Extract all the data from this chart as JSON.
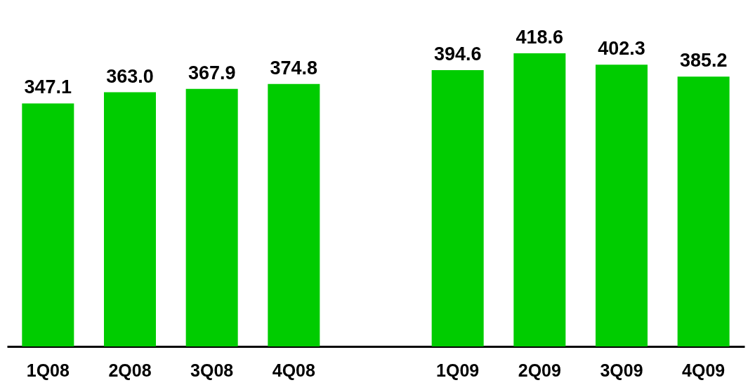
{
  "chart_data": {
    "type": "bar",
    "categories": [
      "1Q08",
      "2Q08",
      "3Q08",
      "4Q08",
      null,
      "1Q09",
      "2Q09",
      "3Q09",
      "4Q09"
    ],
    "values": [
      347.1,
      363.0,
      367.9,
      374.8,
      null,
      394.6,
      418.6,
      402.3,
      385.2
    ],
    "value_labels": [
      "347.1",
      "363.0",
      "367.9",
      "374.8",
      null,
      "394.6",
      "418.6",
      "402.3",
      "385.2"
    ],
    "color": "#00cc00"
  }
}
